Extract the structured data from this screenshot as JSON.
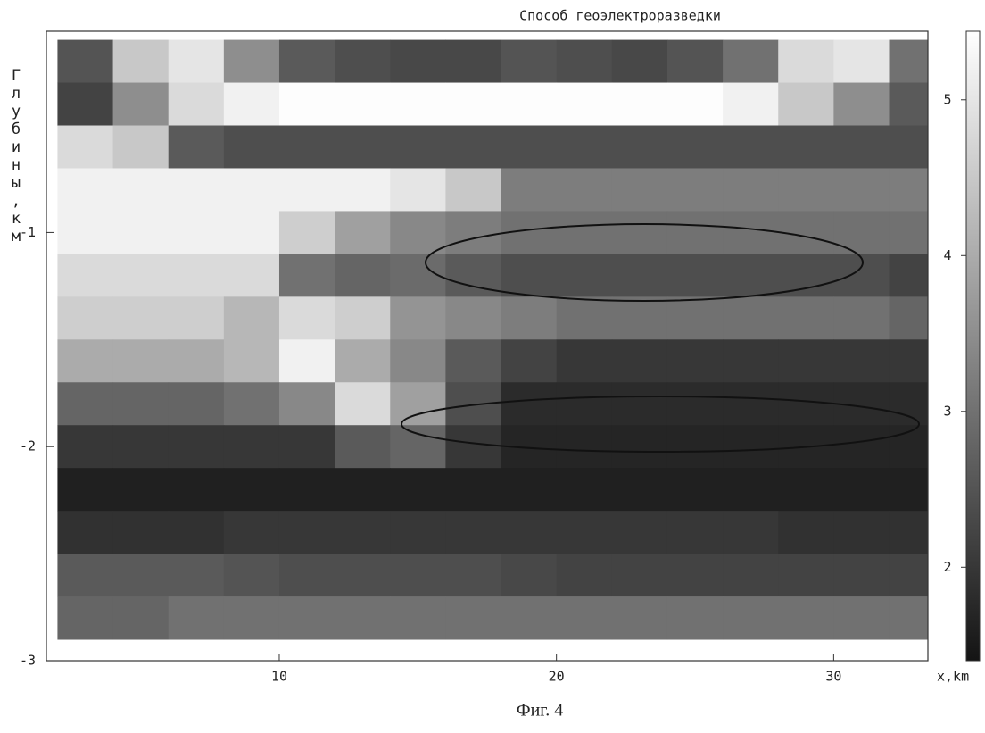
{
  "chart_data": {
    "type": "heatmap",
    "title": "Способ геоэлектроразведки",
    "xlabel": "x,km",
    "ylabel": "Глубины,км",
    "caption": "Фиг. 4",
    "xlim": [
      1.6,
      33.4
    ],
    "xticks": [
      10,
      20,
      30
    ],
    "ylim": [
      -3,
      -0.06
    ],
    "yticks": [
      -1,
      -2,
      -3
    ],
    "clim": [
      1.4,
      5.44
    ],
    "cticks": [
      2,
      3,
      4,
      5
    ],
    "x": [
      3,
      5,
      7,
      9,
      11,
      13,
      15,
      17,
      19,
      21,
      23,
      25,
      27,
      29,
      31,
      33
    ],
    "y": [
      -0.2,
      -0.4,
      -0.6,
      -0.8,
      -1.0,
      -1.2,
      -1.4,
      -1.6,
      -1.8,
      -2.0,
      -2.2,
      -2.4,
      -2.6,
      -2.8
    ],
    "z": [
      [
        2.5,
        4.5,
        5.0,
        3.5,
        2.6,
        2.4,
        2.3,
        2.3,
        2.5,
        2.4,
        2.3,
        2.5,
        3.0,
        4.8,
        5.0,
        3.0
      ],
      [
        2.2,
        3.5,
        4.8,
        5.2,
        5.4,
        5.4,
        5.4,
        5.4,
        5.4,
        5.4,
        5.4,
        5.4,
        5.2,
        4.5,
        3.5,
        2.6
      ],
      [
        4.8,
        4.5,
        2.6,
        2.4,
        2.4,
        2.4,
        2.4,
        2.4,
        2.4,
        2.4,
        2.4,
        2.4,
        2.4,
        2.4,
        2.4,
        2.4
      ],
      [
        5.2,
        5.2,
        5.2,
        5.2,
        5.2,
        5.2,
        5.0,
        4.5,
        3.2,
        3.2,
        3.2,
        3.2,
        3.2,
        3.2,
        3.2,
        3.2
      ],
      [
        5.2,
        5.2,
        5.2,
        5.2,
        4.6,
        3.8,
        3.4,
        3.2,
        3.0,
        3.0,
        3.0,
        3.0,
        3.0,
        3.0,
        3.0,
        3.0
      ],
      [
        4.8,
        4.8,
        4.8,
        4.8,
        3.0,
        2.8,
        2.9,
        2.6,
        2.4,
        2.4,
        2.4,
        2.4,
        2.4,
        2.4,
        2.4,
        2.2
      ],
      [
        4.6,
        4.6,
        4.6,
        4.2,
        4.8,
        4.6,
        3.6,
        3.4,
        3.2,
        3.0,
        3.0,
        3.0,
        3.0,
        3.0,
        3.0,
        2.8
      ],
      [
        4.0,
        4.0,
        4.0,
        4.2,
        5.2,
        4.0,
        3.4,
        2.6,
        2.2,
        2.0,
        2.0,
        2.0,
        2.0,
        2.0,
        2.0,
        2.0
      ],
      [
        2.8,
        2.8,
        2.8,
        3.0,
        3.4,
        4.8,
        3.8,
        2.4,
        1.8,
        1.8,
        1.8,
        1.8,
        1.8,
        1.8,
        1.8,
        1.8
      ],
      [
        2.0,
        2.0,
        2.0,
        2.0,
        2.0,
        2.6,
        2.8,
        2.0,
        1.7,
        1.7,
        1.7,
        1.7,
        1.7,
        1.7,
        1.7,
        1.7
      ],
      [
        1.6,
        1.6,
        1.6,
        1.6,
        1.6,
        1.6,
        1.6,
        1.6,
        1.6,
        1.6,
        1.6,
        1.6,
        1.6,
        1.6,
        1.6,
        1.6
      ],
      [
        1.9,
        1.9,
        1.9,
        2.0,
        2.0,
        2.0,
        2.0,
        2.0,
        2.0,
        2.0,
        2.0,
        2.0,
        2.0,
        1.9,
        1.9,
        1.9
      ],
      [
        2.6,
        2.6,
        2.6,
        2.5,
        2.4,
        2.4,
        2.4,
        2.4,
        2.3,
        2.2,
        2.2,
        2.2,
        2.2,
        2.2,
        2.2,
        2.2
      ],
      [
        2.8,
        2.8,
        3.0,
        3.0,
        3.0,
        3.0,
        3.0,
        3.0,
        3.0,
        3.0,
        3.0,
        3.0,
        3.0,
        3.0,
        3.0,
        3.0
      ]
    ]
  }
}
